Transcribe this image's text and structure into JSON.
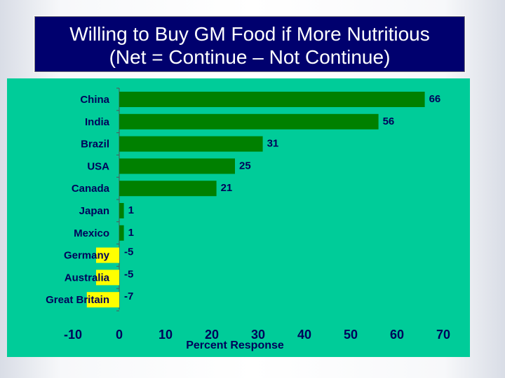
{
  "title": {
    "line1": "Willing to Buy GM Food if More Nutritious",
    "line2": "(Net = Continue – Not Continue)"
  },
  "colors": {
    "positive": "#008000",
    "negative": "#ffff00",
    "background": "#00cc99",
    "text": "#00005a",
    "title_bg": "#00006e"
  },
  "chart_data": {
    "type": "bar",
    "orientation": "horizontal",
    "categories": [
      "China",
      "India",
      "Brazil",
      "USA",
      "Canada",
      "Japan",
      "Mexico",
      "Germany",
      "Australia",
      "Great Britain"
    ],
    "values": [
      66,
      56,
      31,
      25,
      21,
      1,
      1,
      -5,
      -5,
      -7
    ],
    "value_labels": [
      "66",
      "56",
      "31",
      "25",
      "21",
      "1",
      "1",
      "-5",
      "-5",
      "-7"
    ],
    "xlabel": "Percent Response",
    "xlim": [
      -10,
      70
    ],
    "xticks": [
      "-10",
      "0",
      "10",
      "20",
      "30",
      "40",
      "50",
      "60",
      "70"
    ],
    "grid": false
  }
}
